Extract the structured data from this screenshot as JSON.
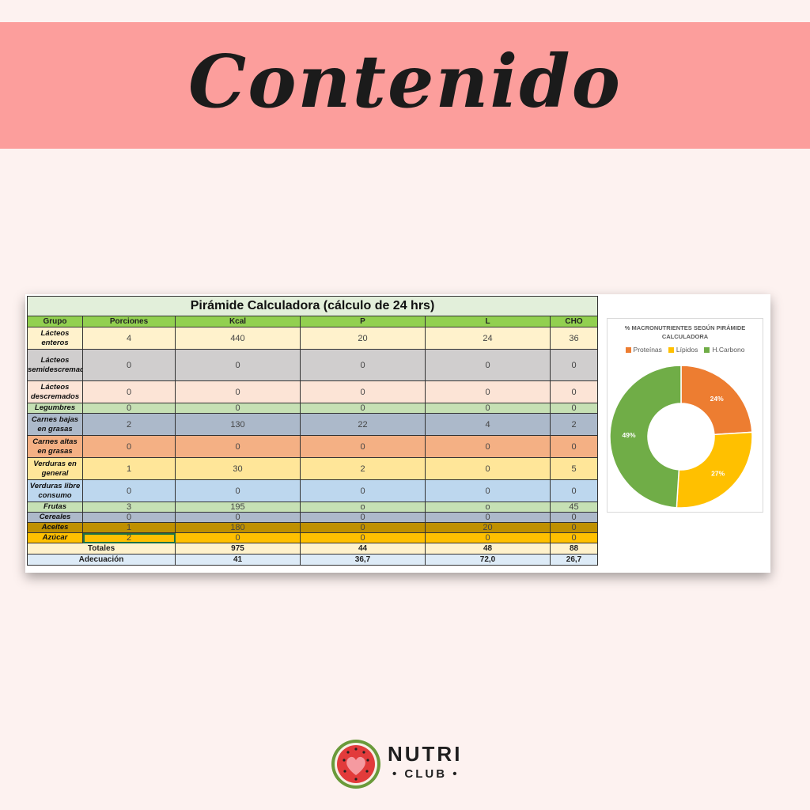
{
  "banner": {
    "title": "Contenido"
  },
  "table": {
    "title": "Pirámide Calculadora (cálculo de 24 hrs)",
    "headers": [
      "Grupo",
      "Porciones",
      "Kcal",
      "P",
      "L",
      "CHO"
    ],
    "rows": [
      {
        "grupo": "Lácteos enteros",
        "porciones": "4",
        "kcal": "440",
        "p": "20",
        "l": "24",
        "cho": "36",
        "color": "#fff2cc"
      },
      {
        "grupo": "Lácteos semidescremados",
        "porciones": "0",
        "kcal": "0",
        "p": "0",
        "l": "0",
        "cho": "0",
        "color": "#d0cece"
      },
      {
        "grupo": "Lácteos descremados",
        "porciones": "0",
        "kcal": "0",
        "p": "0",
        "l": "0",
        "cho": "0",
        "color": "#fce4d6"
      },
      {
        "grupo": "Legumbres",
        "porciones": "0",
        "kcal": "0",
        "p": "0",
        "l": "0",
        "cho": "0",
        "color": "#c6e0b4"
      },
      {
        "grupo": "Carnes bajas en grasas",
        "porciones": "2",
        "kcal": "130",
        "p": "22",
        "l": "4",
        "cho": "2",
        "color": "#acb9ca"
      },
      {
        "grupo": "Carnes altas en grasas",
        "porciones": "0",
        "kcal": "0",
        "p": "0",
        "l": "0",
        "cho": "0",
        "color": "#f4b084"
      },
      {
        "grupo": "Verduras en general",
        "porciones": "1",
        "kcal": "30",
        "p": "2",
        "l": "0",
        "cho": "5",
        "color": "#ffe699"
      },
      {
        "grupo": "Verduras libre consumo",
        "porciones": "0",
        "kcal": "0",
        "p": "0",
        "l": "0",
        "cho": "0",
        "color": "#bdd7ee"
      },
      {
        "grupo": "Frutas",
        "porciones": "3",
        "kcal": "195",
        "p": "o",
        "l": "o",
        "cho": "45",
        "color": "#c6e0b4"
      },
      {
        "grupo": "Cereales",
        "porciones": "0",
        "kcal": "0",
        "p": "0",
        "l": "0",
        "cho": "0",
        "color": "#adb9ca"
      },
      {
        "grupo": "Aceites",
        "porciones": "1",
        "kcal": "180",
        "p": "0",
        "l": "20",
        "cho": "0",
        "color": "#bf9000"
      },
      {
        "grupo": "Azúcar",
        "porciones": "2",
        "kcal": "0",
        "p": "0",
        "l": "0",
        "cho": "0",
        "color": "#ffc000"
      }
    ],
    "totales": {
      "label": "Totales",
      "kcal": "975",
      "p": "44",
      "l": "48",
      "cho": "88"
    },
    "adecuacion": {
      "label": "Adecuación",
      "kcal": "41",
      "p": "36,7",
      "l": "72,0",
      "cho": "26,7"
    }
  },
  "chart_data": {
    "type": "pie",
    "title": "% MACRONUTRIENTES SEGÚN PIRÁMIDE CALCULADORA",
    "legend_position": "top",
    "categories": [
      "Proteínas",
      "Lípidos",
      "H.Carbono"
    ],
    "values": [
      24,
      27,
      49
    ],
    "labels": [
      "24%",
      "27%",
      "49%"
    ],
    "colors": [
      "#ed7d31",
      "#ffc000",
      "#70ad47"
    ]
  },
  "logo": {
    "nutri": "NUTRI",
    "club": "• CLUB •"
  }
}
